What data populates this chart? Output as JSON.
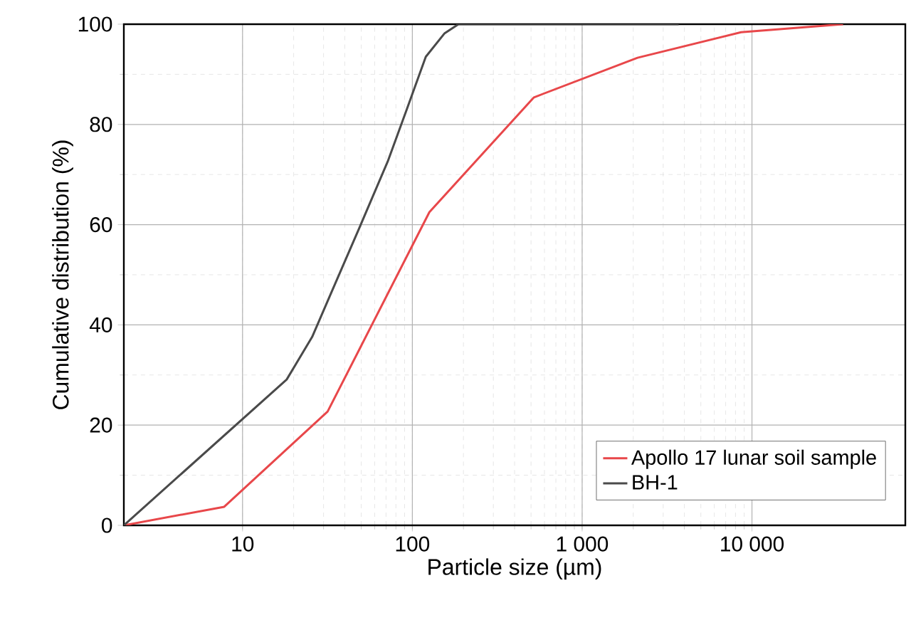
{
  "chart_data": {
    "type": "line",
    "xlabel": "Particle size (µm)",
    "ylabel": "Cumulative distribution (%)",
    "log": "x",
    "xlim": [
      2,
      80000
    ],
    "ylim": [
      0,
      100
    ],
    "xticks": [
      10,
      100,
      {
        "value": 1000,
        "label": "1 000"
      },
      {
        "value": 10000,
        "label": "10 000"
      }
    ],
    "yticks": [
      0,
      20,
      40,
      60,
      80,
      100
    ],
    "grid": true,
    "legend": "bottom right",
    "series": [
      {
        "name": "Apollo 17 lunar soil sample",
        "color": "#e8474a",
        "x": [
          2,
          7.8,
          31.7,
          126,
          520,
          2120,
          8630,
          34400
        ],
        "values": [
          0,
          3.7,
          22.7,
          62.5,
          85.4,
          93.3,
          98.4,
          100
        ]
      },
      {
        "name": "BH-1",
        "color": "#4a4a4a",
        "x": [
          2,
          18.2,
          25.7,
          33,
          48.8,
          71.6,
          92.7,
          120,
          155,
          187,
          3700
        ],
        "values": [
          0,
          29.1,
          37.6,
          46.1,
          59.4,
          72.6,
          83,
          93.5,
          98.2,
          100,
          100
        ]
      }
    ]
  }
}
